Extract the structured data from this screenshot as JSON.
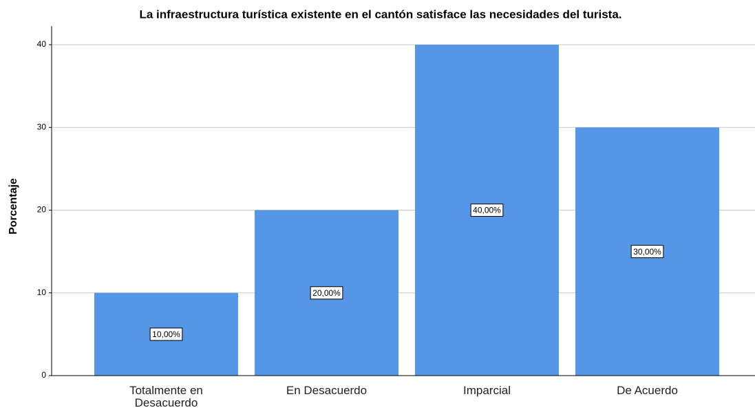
{
  "chart_data": {
    "type": "bar",
    "title": "La infraestructura turística existente en el cantón satisface las necesidades del turista.",
    "ylabel": "Porcentaje",
    "categories": [
      "Totalmente en Desacuerdo",
      "En Desacuerdo",
      "Imparcial",
      "De Acuerdo"
    ],
    "values": [
      10,
      20,
      40,
      30
    ],
    "value_labels": [
      "10,00%",
      "20,00%",
      "40,00%",
      "30,00%"
    ],
    "color": "#5596e6",
    "ylim": [
      0,
      40
    ],
    "yticks": [
      0,
      10,
      20,
      30,
      40
    ],
    "grid": true
  }
}
